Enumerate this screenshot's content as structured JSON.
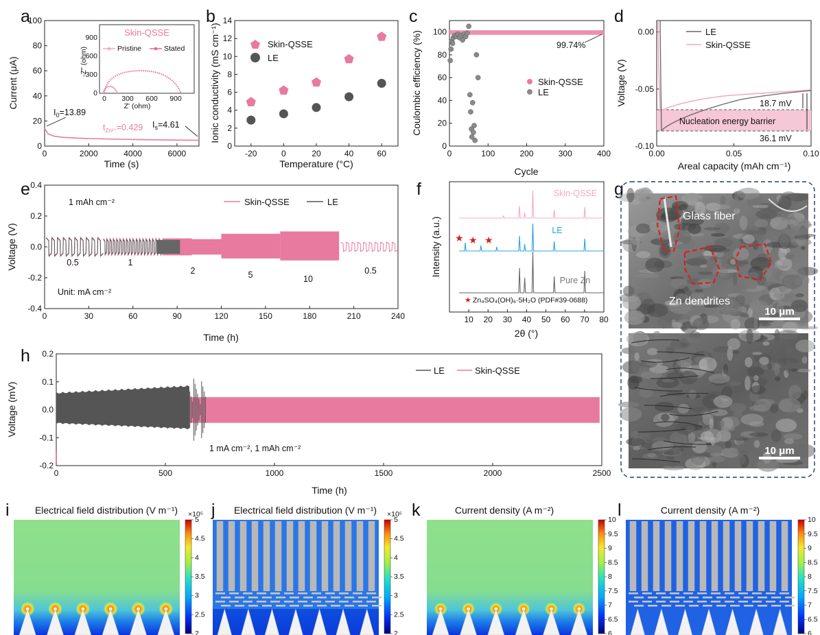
{
  "colors": {
    "skin": "#e87a9f",
    "skin_light": "#f4a9c4",
    "le": "#555555",
    "blue": "#29a3e0",
    "red": "#d62020",
    "dash_blue": "#223a6b"
  },
  "chart_data": [
    {
      "panel": "a",
      "type": "line",
      "xlabel": "Time (s)",
      "ylabel": "Current (μA)",
      "xlim": [
        0,
        7000
      ],
      "ylim": [
        0,
        100
      ],
      "xticks": [
        "0",
        "2000",
        "4000",
        "6000"
      ],
      "yticks": [
        "0",
        "20",
        "40",
        "60",
        "80",
        "100"
      ],
      "series": [
        {
          "values_x": [
            0,
            150,
            400,
            800,
            1500,
            2500,
            3500,
            4500,
            5500,
            6500,
            7000
          ],
          "values_y": [
            13.89,
            10,
            8,
            7,
            6.3,
            5.8,
            5.4,
            5.1,
            4.9,
            4.7,
            4.61
          ]
        }
      ],
      "annotations": {
        "i0": "I",
        "i0_sub": "0",
        "i0_val": "=13.89",
        "is": "I",
        "is_sub": "s",
        "is_val": "=4.61",
        "t": "t",
        "t_sub": "Zn²⁺",
        "t_val": "=0.429"
      },
      "inset": {
        "title": "Skin-QSSE",
        "xlabel": "Z' (ohm)",
        "ylabel": "-Z'' (ohm)",
        "xlim": [
          0,
          1000
        ],
        "ylim": [
          0,
          1000
        ],
        "xticks": [
          "0",
          "300",
          "600",
          "900"
        ],
        "yticks": [
          "0",
          "300",
          "600",
          "900"
        ],
        "legend": [
          "Pristine",
          "Stated"
        ]
      }
    },
    {
      "panel": "b",
      "type": "scatter",
      "xlabel": "Temperature (°C)",
      "ylabel": "Ionic conductivity (mS cm⁻¹)",
      "xlim": [
        -30,
        70
      ],
      "ylim": [
        0,
        14
      ],
      "xticks": [
        "-20",
        "0",
        "20",
        "40",
        "60"
      ],
      "yticks": [
        "0",
        "2",
        "4",
        "6",
        "8",
        "10",
        "12",
        "14"
      ],
      "categories": [
        -20,
        0,
        20,
        40,
        60
      ],
      "series": [
        {
          "name": "Skin-QSSE",
          "values": [
            4.9,
            6.2,
            7.1,
            9.7,
            12.2
          ]
        },
        {
          "name": "LE",
          "values": [
            2.9,
            3.6,
            4.3,
            5.5,
            7.0
          ]
        }
      ]
    },
    {
      "panel": "c",
      "type": "scatter",
      "xlabel": "Cycle",
      "ylabel": "Coulombic efficiency (%)",
      "xlim": [
        0,
        400
      ],
      "ylim": [
        0,
        110
      ],
      "xticks": [
        "0",
        "100",
        "200",
        "300",
        "400"
      ],
      "yticks": [
        "0",
        "20",
        "40",
        "60",
        "80",
        "100"
      ],
      "series": [
        {
          "name": "Skin-QSSE",
          "approx_value": 99.74,
          "cycles": [
            1,
            400
          ]
        },
        {
          "name": "LE",
          "x": [
            2,
            4,
            6,
            8,
            10,
            14,
            18,
            22,
            26,
            30,
            34,
            38,
            42,
            46,
            50,
            53,
            55,
            57,
            58,
            60,
            62,
            64,
            66,
            70,
            74
          ],
          "y": [
            75,
            85,
            92,
            90,
            95,
            97,
            96,
            98,
            95,
            97,
            93,
            98,
            96,
            99,
            105,
            45,
            30,
            15,
            8,
            38,
            12,
            18,
            5,
            80,
            60
          ]
        }
      ],
      "annotation": "99.74%"
    },
    {
      "panel": "d",
      "type": "line",
      "xlabel": "Areal capacity (mAh cm⁻¹)",
      "ylabel": "Voltage (V)",
      "xlim": [
        0,
        0.1
      ],
      "ylim": [
        -0.1,
        0.01
      ],
      "xticks": [
        "0.00",
        "0.05",
        "0.10"
      ],
      "yticks": [
        "0.00",
        "-0.05",
        "-0.10"
      ],
      "series": [
        {
          "name": "LE"
        },
        {
          "name": "Skin-QSSE"
        }
      ],
      "annotations": [
        "18.7 mV",
        "Nucleation energy barrier",
        "36.1 mV"
      ]
    },
    {
      "panel": "e",
      "type": "line",
      "xlabel": "Time (h)",
      "ylabel": "Voltage (V)",
      "xlim": [
        0,
        240
      ],
      "ylim": [
        -0.4,
        0.4
      ],
      "xticks": [
        "0",
        "30",
        "60",
        "90",
        "120",
        "150",
        "180",
        "210",
        "240"
      ],
      "yticks": [
        "0.4",
        "0.2",
        "0.0",
        "-0.2",
        "-0.4"
      ],
      "series": [
        {
          "name": "Skin-QSSE"
        },
        {
          "name": "LE"
        }
      ],
      "annotations": {
        "cap": "1 mAh cm⁻²",
        "unit": "Unit: mA cm⁻²",
        "rates": [
          "0.5",
          "1",
          "2",
          "5",
          "10",
          "0.5"
        ]
      }
    },
    {
      "panel": "f",
      "type": "line",
      "xlabel": "2θ (°)",
      "ylabel": "Intensity (a.u.)",
      "xlim": [
        0,
        80
      ],
      "xticks": [
        "10",
        "20",
        "30",
        "40",
        "50",
        "60",
        "70",
        "80"
      ],
      "series": [
        {
          "name": "Skin-QSSE"
        },
        {
          "name": "LE"
        },
        {
          "name": "Pure Zn"
        }
      ],
      "legend_note": "Zn₄SO₄(OH)₆·5H₂O (PDF#39-0688)"
    },
    {
      "panel": "h",
      "type": "line",
      "xlabel": "Time (h)",
      "ylabel": "Voltage (mV)",
      "xlim": [
        0,
        2500
      ],
      "ylim": [
        -0.2,
        0.2
      ],
      "xticks": [
        "0",
        "500",
        "1000",
        "1500",
        "2000",
        "2500"
      ],
      "yticks": [
        "0.2",
        "0.1",
        "0.0",
        "-0.1",
        "-0.2"
      ],
      "series": [
        {
          "name": "LE"
        },
        {
          "name": "Skin-QSSE"
        }
      ],
      "annotation": "1 mA cm⁻², 1 mAh cm⁻²"
    },
    {
      "panel": "i",
      "type": "heatmap",
      "title": "Electrical field distribution (V m⁻¹)",
      "colorbar_ticks": [
        "5",
        "4.5",
        "4",
        "3.5",
        "3",
        "2.5",
        "2"
      ],
      "colorbar_exp": "×10⁵"
    },
    {
      "panel": "j",
      "type": "heatmap",
      "title": "Electrical field distribution (V m⁻¹)",
      "colorbar_ticks": [
        "5",
        "4.5",
        "4",
        "3.5",
        "3",
        "2.5",
        "2"
      ],
      "colorbar_exp": "×10⁵"
    },
    {
      "panel": "k",
      "type": "heatmap",
      "title": "Current density (A m⁻²)",
      "colorbar_ticks": [
        "10",
        "9.5",
        "9",
        "8.5",
        "8",
        "7.5",
        "7",
        "6.5",
        "6"
      ]
    },
    {
      "panel": "l",
      "type": "heatmap",
      "title": "Current density (A m⁻²)",
      "colorbar_ticks": [
        "10",
        "9.5",
        "9",
        "8.5",
        "8",
        "7.5",
        "7",
        "6.5",
        "6"
      ]
    }
  ],
  "panel_labels": [
    "a",
    "b",
    "c",
    "d",
    "e",
    "f",
    "g",
    "h",
    "i",
    "j",
    "k",
    "l"
  ],
  "sem": {
    "top_label1": "Glass fiber",
    "top_label2": "Zn dendrites",
    "scale1": "10 μm",
    "scale2": "10 μm"
  }
}
